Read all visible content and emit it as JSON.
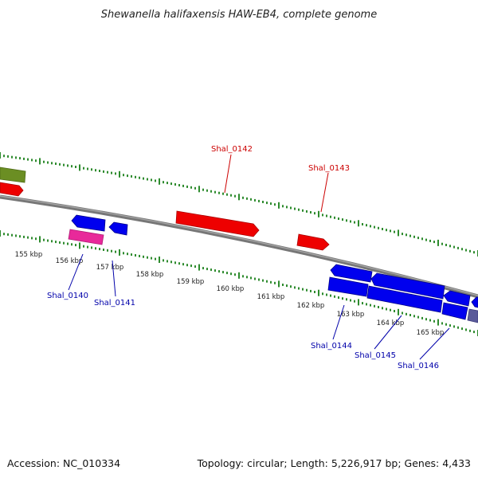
{
  "title": "Shewanella halifaxensis HAW-EB4, complete genome",
  "footer": {
    "accession": "Accession: NC_010334",
    "summary": "Topology: circular; Length: 5,226,917 bp; Genes: 4,433"
  },
  "colors": {
    "backbone": "#808080",
    "tick_green": "#2e8b2e",
    "reverse_gene": "#0000ee",
    "forward_gene": "#ee0000",
    "pink_gene": "#e8299a",
    "olive_gene": "#6b8e23",
    "slate_gene": "#5a5a9a",
    "red_label": "#cc0000",
    "blue_label": "#0000aa"
  },
  "ticks": [
    {
      "label": "155 kbp"
    },
    {
      "label": "156 kbp"
    },
    {
      "label": "157 kbp"
    },
    {
      "label": "158 kbp"
    },
    {
      "label": "159 kbp"
    },
    {
      "label": "160 kbp"
    },
    {
      "label": "161 kbp"
    },
    {
      "label": "162 kbp"
    },
    {
      "label": "163 kbp"
    },
    {
      "label": "164 kbp"
    },
    {
      "label": "165 kbp"
    }
  ],
  "gene_labels": [
    {
      "text": "Shal_0142",
      "strand": "forward"
    },
    {
      "text": "Shal_0143",
      "strand": "forward"
    },
    {
      "text": "Shal_0140",
      "strand": "reverse"
    },
    {
      "text": "Shal_0141",
      "strand": "reverse"
    },
    {
      "text": "Shal_0144",
      "strand": "reverse"
    },
    {
      "text": "Shal_0145",
      "strand": "reverse"
    },
    {
      "text": "Shal_0146",
      "strand": "reverse"
    }
  ]
}
